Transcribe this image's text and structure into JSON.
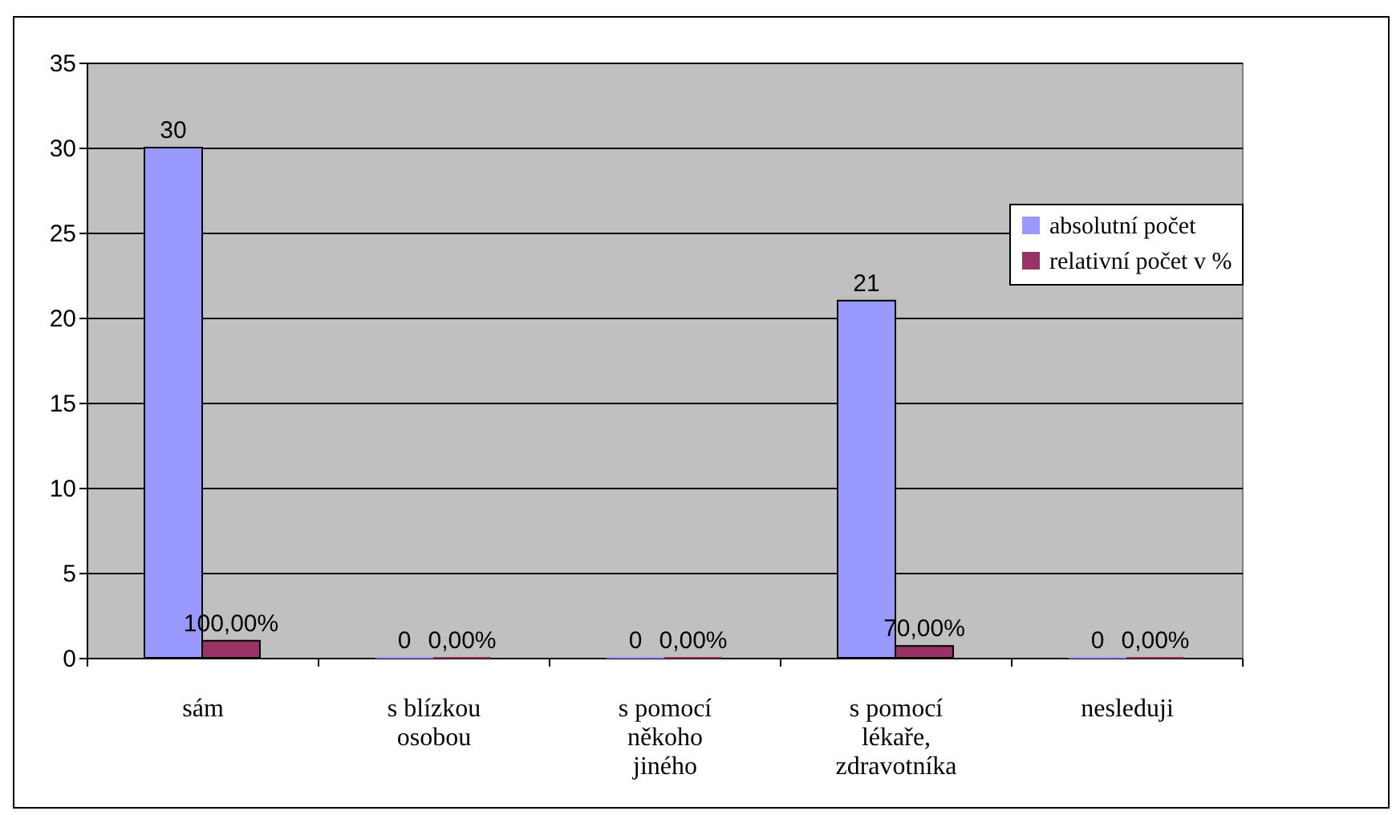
{
  "chart_data": {
    "type": "bar",
    "categories": [
      "sám",
      "s blízkou osobou",
      "s pomocí někoho jiného",
      "s pomocí lékaře, zdravotníka",
      "nesleduji"
    ],
    "series": [
      {
        "name": "absolutní počet",
        "color": "#9999ff",
        "values": [
          30,
          0,
          0,
          21,
          0
        ],
        "value_labels": [
          "30",
          "0",
          "0",
          "21",
          "0"
        ]
      },
      {
        "name": "relativní počet v %",
        "color": "#993366",
        "values": [
          1,
          0,
          0,
          0.7,
          0
        ],
        "value_labels": [
          "100,00%",
          "0,00%",
          "0,00%",
          "70,00%",
          "0,00%"
        ]
      }
    ],
    "ylim": [
      0,
      35
    ],
    "yticks": [
      0,
      5,
      10,
      15,
      20,
      25,
      30,
      35
    ],
    "grid": "y",
    "legend": "right"
  }
}
